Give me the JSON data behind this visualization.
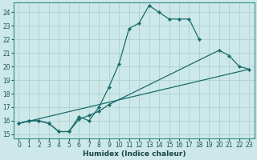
{
  "xlabel": "Humidex (Indice chaleur)",
  "bg_color": "#cce8e8",
  "grid_color": "#aacccc",
  "line_color": "#1a6b6b",
  "xlim": [
    -0.5,
    23.5
  ],
  "ylim": [
    14.7,
    24.7
  ],
  "xticks": [
    0,
    1,
    2,
    3,
    4,
    5,
    6,
    7,
    8,
    9,
    10,
    11,
    12,
    13,
    14,
    15,
    16,
    17,
    18,
    19,
    20,
    21,
    22,
    23
  ],
  "yticks": [
    15,
    16,
    17,
    18,
    19,
    20,
    21,
    22,
    23,
    24
  ],
  "line1_x": [
    0,
    1,
    2,
    3,
    4,
    5,
    6,
    7,
    8,
    9,
    10,
    11,
    12,
    13,
    14,
    15,
    16,
    17,
    18
  ],
  "line1_y": [
    15.8,
    16.0,
    16.0,
    15.8,
    15.2,
    15.2,
    16.3,
    16.0,
    17.0,
    18.5,
    20.2,
    22.8,
    23.2,
    24.5,
    24.0,
    23.5,
    23.5,
    23.5,
    22.0
  ],
  "line2_x": [
    0,
    1,
    2,
    3,
    4,
    5,
    6,
    7,
    8,
    9,
    20,
    21,
    22,
    23
  ],
  "line2_y": [
    15.8,
    16.0,
    16.0,
    15.8,
    15.2,
    15.2,
    16.1,
    16.4,
    16.7,
    17.2,
    21.2,
    20.8,
    20.0,
    19.8
  ],
  "line3_x": [
    0,
    23
  ],
  "line3_y": [
    15.8,
    19.8
  ]
}
